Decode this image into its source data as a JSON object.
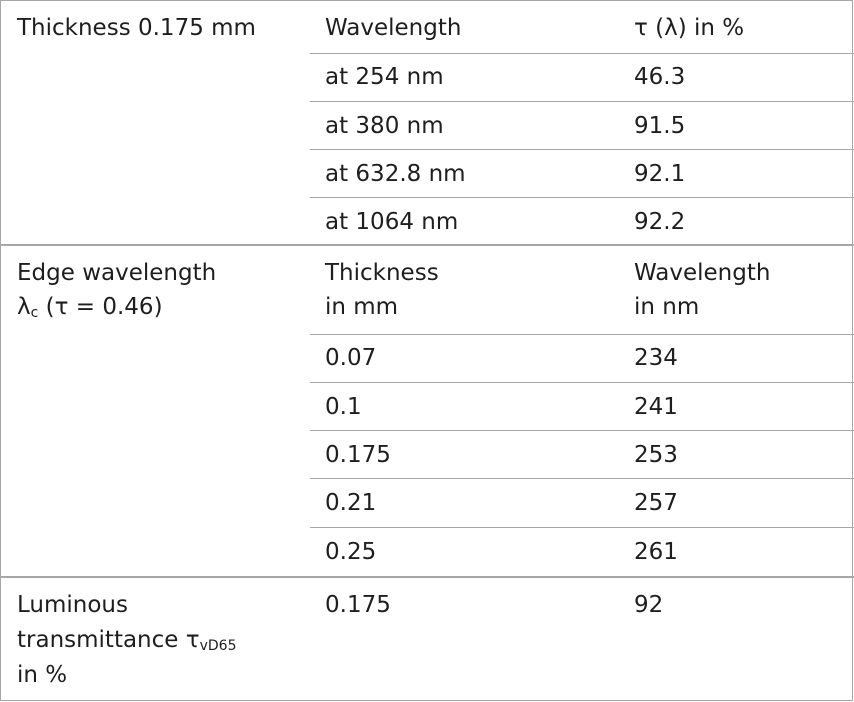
{
  "section1": {
    "label": "Thickness 0.175 mm",
    "header": {
      "col2": "Wavelength",
      "col3": "τ (λ) in %"
    },
    "rows": [
      {
        "wavelength": "at 254 nm",
        "value": "46.3"
      },
      {
        "wavelength": "at 380 nm",
        "value": "91.5"
      },
      {
        "wavelength": "at 632.8 nm",
        "value": "92.1"
      },
      {
        "wavelength": "at 1064 nm",
        "value": "92.2"
      }
    ]
  },
  "section2": {
    "label_line1": "Edge wavelength",
    "label_symbol": "λ",
    "label_sub": "c",
    "label_rest": " (τ = 0.46)",
    "header": {
      "col2_line1": "Thickness",
      "col2_line2": "in mm",
      "col3_line1": "Wavelength",
      "col3_line2": "in nm"
    },
    "rows": [
      {
        "thickness": "0.07",
        "wavelength": "234"
      },
      {
        "thickness": "0.1",
        "wavelength": "241"
      },
      {
        "thickness": "0.175",
        "wavelength": "253"
      },
      {
        "thickness": "0.21",
        "wavelength": "257"
      },
      {
        "thickness": "0.25",
        "wavelength": "261"
      }
    ]
  },
  "section3": {
    "label_line1": "Luminous",
    "label_line2_text": "transmittance τ",
    "label_line2_sub": "vD65",
    "label_line3": "in %",
    "thickness": "0.175",
    "value": "92"
  }
}
